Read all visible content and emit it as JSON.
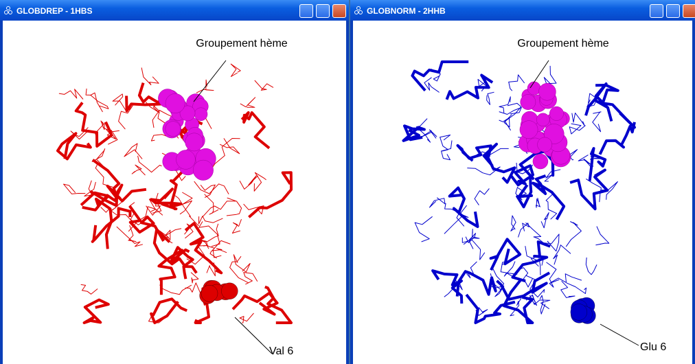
{
  "windows": [
    {
      "title": "GLOBDREP - 1HBS",
      "labels": [
        "Groupement hème",
        "Val 6"
      ]
    },
    {
      "title": "GLOBNORM - 2HHB",
      "labels": [
        "Groupement hème",
        "Glu 6"
      ]
    }
  ]
}
